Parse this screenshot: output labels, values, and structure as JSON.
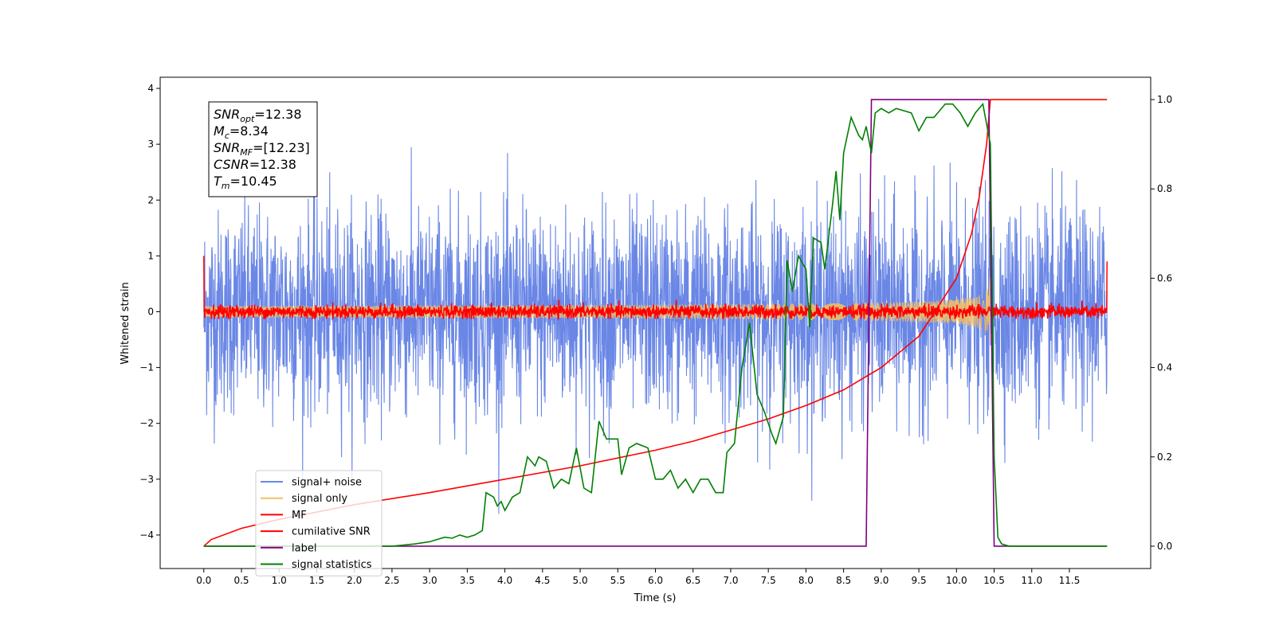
{
  "chart_data": {
    "type": "line",
    "xlabel": "Time (s)",
    "ylabel_left": "Whitened strain",
    "ylabel_right": "",
    "xlim": [
      -0.58,
      12.58
    ],
    "ylim_left": [
      -4.6,
      4.2
    ],
    "ylim_right": [
      -0.05,
      1.05
    ],
    "x_ticks": [
      "0.0",
      "0.5",
      "1.0",
      "1.5",
      "2.0",
      "2.5",
      "3.0",
      "3.5",
      "4.0",
      "4.5",
      "5.0",
      "5.5",
      "6.0",
      "6.5",
      "7.0",
      "7.5",
      "8.0",
      "8.5",
      "9.0",
      "9.5",
      "10.0",
      "10.5",
      "11.0",
      "11.5"
    ],
    "y_ticks_left": [
      "−4",
      "−3",
      "−2",
      "−1",
      "0",
      "1",
      "2",
      "3",
      "4"
    ],
    "y_ticks_right": [
      "0.0",
      "0.2",
      "0.4",
      "0.6",
      "0.8",
      "1.0"
    ],
    "grid": false,
    "legend_position": "lower-left",
    "annotation": {
      "lines": [
        {
          "var": "SNR",
          "sub": "opt",
          "value": "=12.38"
        },
        {
          "var": "M",
          "sub": "c",
          "value": "=8.34"
        },
        {
          "var": "SNR",
          "sub": "MF",
          "value": "=[12.23]"
        },
        {
          "var": "CSNR",
          "sub": "",
          "value": "=12.38"
        },
        {
          "var": "T",
          "sub": "m",
          "value": "=10.45"
        }
      ]
    },
    "series": [
      {
        "name": "signal+ noise",
        "color": "#6a87e6",
        "axis": "left",
        "kind": "noise",
        "x_range": [
          0.0,
          12.0
        ],
        "sigma": 0.9,
        "approx_extreme": [
          -4.15,
          3.72
        ]
      },
      {
        "name": "signal only",
        "color": "#f5c060",
        "axis": "left",
        "kind": "chirp",
        "x_range": [
          0.0,
          10.45
        ],
        "peak_amplitude": 0.8,
        "merger_time": 10.45
      },
      {
        "name": "MF",
        "color": "#ff0000",
        "axis": "left",
        "kind": "noise",
        "x_range": [
          0.0,
          12.0
        ],
        "sigma": 0.06,
        "edge_values": [
          1.0,
          0.9
        ]
      },
      {
        "name": "cumilative SNR",
        "color": "#ff0000",
        "axis": "right",
        "kind": "curve",
        "points": [
          [
            0.0,
            0.0
          ],
          [
            0.1,
            0.015
          ],
          [
            0.5,
            0.04
          ],
          [
            1.0,
            0.06
          ],
          [
            2.0,
            0.093
          ],
          [
            3.0,
            0.12
          ],
          [
            4.0,
            0.15
          ],
          [
            5.0,
            0.18
          ],
          [
            6.0,
            0.215
          ],
          [
            6.5,
            0.235
          ],
          [
            7.0,
            0.26
          ],
          [
            7.5,
            0.285
          ],
          [
            8.0,
            0.315
          ],
          [
            8.5,
            0.35
          ],
          [
            9.0,
            0.4
          ],
          [
            9.5,
            0.47
          ],
          [
            10.0,
            0.6
          ],
          [
            10.2,
            0.7
          ],
          [
            10.3,
            0.78
          ],
          [
            10.4,
            0.9
          ],
          [
            10.45,
            1.0
          ],
          [
            12.0,
            1.0
          ]
        ]
      },
      {
        "name": "label",
        "color": "#800080",
        "axis": "right",
        "kind": "step",
        "points": [
          [
            0.0,
            0.0
          ],
          [
            8.8,
            0.0
          ],
          [
            8.87,
            1.0
          ],
          [
            10.43,
            1.0
          ],
          [
            10.5,
            0.0
          ],
          [
            12.0,
            0.0
          ]
        ]
      },
      {
        "name": "signal statistics",
        "color": "#008000",
        "axis": "right",
        "kind": "curve",
        "points": [
          [
            0.0,
            0.0
          ],
          [
            2.5,
            0.0
          ],
          [
            2.8,
            0.005
          ],
          [
            3.0,
            0.01
          ],
          [
            3.1,
            0.015
          ],
          [
            3.2,
            0.02
          ],
          [
            3.3,
            0.018
          ],
          [
            3.4,
            0.025
          ],
          [
            3.5,
            0.02
          ],
          [
            3.6,
            0.025
          ],
          [
            3.7,
            0.035
          ],
          [
            3.75,
            0.12
          ],
          [
            3.85,
            0.11
          ],
          [
            3.9,
            0.09
          ],
          [
            3.95,
            0.1
          ],
          [
            4.0,
            0.08
          ],
          [
            4.1,
            0.11
          ],
          [
            4.2,
            0.12
          ],
          [
            4.3,
            0.2
          ],
          [
            4.4,
            0.18
          ],
          [
            4.45,
            0.2
          ],
          [
            4.55,
            0.19
          ],
          [
            4.65,
            0.13
          ],
          [
            4.75,
            0.15
          ],
          [
            4.85,
            0.14
          ],
          [
            4.95,
            0.22
          ],
          [
            5.05,
            0.13
          ],
          [
            5.15,
            0.12
          ],
          [
            5.25,
            0.28
          ],
          [
            5.35,
            0.24
          ],
          [
            5.5,
            0.24
          ],
          [
            5.55,
            0.16
          ],
          [
            5.65,
            0.22
          ],
          [
            5.75,
            0.23
          ],
          [
            5.9,
            0.22
          ],
          [
            6.0,
            0.15
          ],
          [
            6.1,
            0.15
          ],
          [
            6.2,
            0.17
          ],
          [
            6.3,
            0.13
          ],
          [
            6.4,
            0.15
          ],
          [
            6.5,
            0.12
          ],
          [
            6.6,
            0.15
          ],
          [
            6.7,
            0.15
          ],
          [
            6.8,
            0.12
          ],
          [
            6.9,
            0.12
          ],
          [
            6.95,
            0.21
          ],
          [
            7.05,
            0.23
          ],
          [
            7.15,
            0.4
          ],
          [
            7.25,
            0.5
          ],
          [
            7.35,
            0.34
          ],
          [
            7.45,
            0.3
          ],
          [
            7.55,
            0.25
          ],
          [
            7.6,
            0.23
          ],
          [
            7.7,
            0.29
          ],
          [
            7.75,
            0.64
          ],
          [
            7.82,
            0.57
          ],
          [
            7.9,
            0.65
          ],
          [
            8.0,
            0.62
          ],
          [
            8.05,
            0.49
          ],
          [
            8.1,
            0.69
          ],
          [
            8.2,
            0.68
          ],
          [
            8.25,
            0.62
          ],
          [
            8.35,
            0.76
          ],
          [
            8.4,
            0.84
          ],
          [
            8.45,
            0.73
          ],
          [
            8.5,
            0.88
          ],
          [
            8.6,
            0.96
          ],
          [
            8.7,
            0.92
          ],
          [
            8.75,
            0.91
          ],
          [
            8.8,
            0.94
          ],
          [
            8.87,
            0.88
          ],
          [
            8.92,
            0.97
          ],
          [
            9.0,
            0.98
          ],
          [
            9.1,
            0.97
          ],
          [
            9.2,
            0.98
          ],
          [
            9.4,
            0.97
          ],
          [
            9.5,
            0.93
          ],
          [
            9.6,
            0.96
          ],
          [
            9.7,
            0.96
          ],
          [
            9.85,
            0.99
          ],
          [
            9.95,
            0.99
          ],
          [
            10.05,
            0.97
          ],
          [
            10.15,
            0.94
          ],
          [
            10.25,
            0.97
          ],
          [
            10.35,
            0.99
          ],
          [
            10.45,
            0.9
          ],
          [
            10.5,
            0.2
          ],
          [
            10.55,
            0.02
          ],
          [
            10.6,
            0.005
          ],
          [
            10.7,
            0.0
          ],
          [
            12.0,
            0.0
          ]
        ]
      }
    ]
  }
}
